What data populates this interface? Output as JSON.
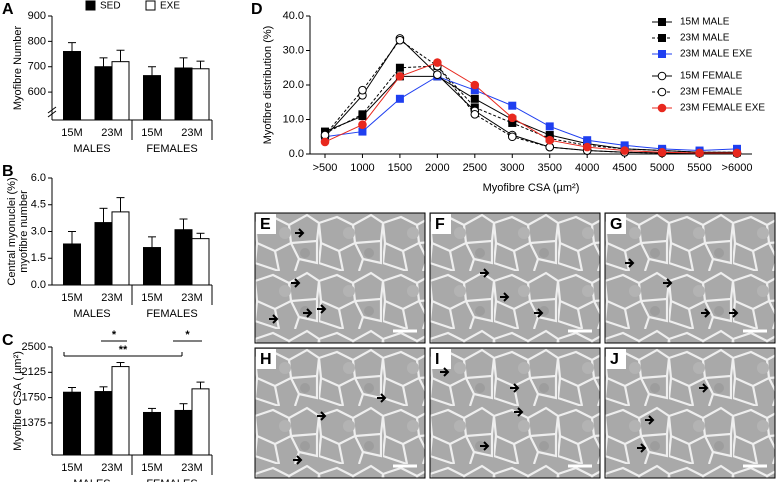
{
  "chart_data": [
    {
      "type": "bar",
      "label": "A",
      "ylabel": [
        "Myofibre Number"
      ],
      "categories": [
        "15M",
        "23M",
        "15M",
        "23M"
      ],
      "groups": [
        "MALES",
        "FEMALES"
      ],
      "series": [
        {
          "name": "SED",
          "color": "#000000",
          "values": [
            760,
            700,
            665,
            695
          ],
          "errors": [
            35,
            35,
            35,
            40
          ]
        },
        {
          "name": "EXE",
          "color": "#ffffff",
          "values": [
            null,
            720,
            null,
            692
          ],
          "errors": [
            null,
            45,
            null,
            30
          ]
        }
      ],
      "ylim": [
        490,
        900
      ],
      "yticks": [
        600,
        700,
        800,
        900
      ],
      "axis_break": true
    },
    {
      "type": "bar",
      "label": "B",
      "ylabel": [
        "Central myonuclei (%)",
        "myofibre number"
      ],
      "categories": [
        "15M",
        "23M",
        "15M",
        "23M"
      ],
      "groups": [
        "MALES",
        "FEMALES"
      ],
      "series": [
        {
          "color": "#000000",
          "values": [
            2.3,
            3.5,
            2.1,
            3.1
          ],
          "errors": [
            0.7,
            0.8,
            0.6,
            0.6
          ]
        },
        {
          "color": "#ffffff",
          "values": [
            null,
            4.1,
            null,
            2.6
          ],
          "errors": [
            null,
            0.8,
            null,
            0.3
          ]
        }
      ],
      "ylim": [
        0,
        6
      ],
      "yticks": [
        {
          "value": 0,
          "label": "0.0"
        },
        1.5,
        {
          "value": 3,
          "label": "3.0"
        },
        4.5,
        {
          "value": 6,
          "label": "6.0"
        }
      ]
    },
    {
      "type": "bar",
      "label": "C",
      "ylabel": [
        "Myofibre CSA ( µm²)"
      ],
      "categories": [
        "15M",
        "23M",
        "15M",
        "23M"
      ],
      "groups": [
        "MALES",
        "FEMALES"
      ],
      "series": [
        {
          "color": "#000000",
          "values": [
            1830,
            1840,
            1530,
            1560
          ],
          "errors": [
            70,
            70,
            60,
            100
          ]
        },
        {
          "color": "#ffffff",
          "values": [
            null,
            2210,
            null,
            1880
          ],
          "errors": [
            null,
            60,
            null,
            100
          ]
        }
      ],
      "ylim": [
        900,
        2500
      ],
      "yticks": [
        1375,
        1750,
        2125,
        2500
      ],
      "annotations": [
        "*",
        "**",
        "*"
      ]
    },
    {
      "type": "line",
      "label": "D",
      "ylabel": [
        "Myofibre distribution (%)"
      ],
      "xlabel": "Myofibre CSA (µm²)",
      "categories": [
        ">500",
        "1000",
        "1500",
        "2000",
        "2500",
        "3000",
        "3500",
        "4000",
        "4500",
        "5000",
        "5500",
        ">6000"
      ],
      "series": [
        {
          "name": "15M MALE",
          "color": "#000000",
          "marker": "square",
          "fill": "filled",
          "dash": "solid",
          "values": [
            6.5,
            11,
            22.5,
            22.5,
            16,
            10,
            5.5,
            3,
            1.5,
            1,
            0.5,
            0.5
          ]
        },
        {
          "name": "23M MALE",
          "color": "#000000",
          "marker": "square",
          "fill": "filled",
          "dash": "dashed",
          "values": [
            6,
            11.5,
            25,
            25.5,
            13.5,
            9,
            4.5,
            2.5,
            1.5,
            1,
            0.5,
            0.5
          ]
        },
        {
          "name": "23M MALE EXE",
          "color": "#1f3ff0",
          "marker": "square",
          "fill": "filled",
          "dash": "solid",
          "values": [
            5,
            6.5,
            16,
            22.5,
            18.5,
            14,
            8,
            4,
            2.5,
            1.5,
            1,
            1.5
          ]
        },
        {
          "name": "15M FEMALE",
          "color": "#000000",
          "marker": "circle",
          "fill": "open",
          "dash": "solid",
          "values": [
            5,
            17,
            33.5,
            23,
            12.5,
            5.5,
            2,
            1,
            0.5,
            0.3,
            0.2,
            0.2
          ]
        },
        {
          "name": "23M FEMALE",
          "color": "#000000",
          "marker": "circle",
          "fill": "open",
          "dash": "dashed",
          "values": [
            5.5,
            18.5,
            33,
            25.5,
            11.5,
            5,
            2,
            1,
            0.5,
            0.3,
            0.2,
            0.2
          ]
        },
        {
          "name": "23M FEMALE EXE",
          "color": "#e8281e",
          "marker": "circle",
          "fill": "filled",
          "dash": "solid",
          "values": [
            3.5,
            8.5,
            22.5,
            26.5,
            20,
            10.5,
            4,
            2,
            1,
            0.5,
            0.3,
            0.3
          ]
        }
      ],
      "ylim": [
        0,
        40
      ],
      "yticks": [
        {
          "value": 0,
          "label": "0.0"
        },
        {
          "value": 10,
          "label": "10.0"
        },
        {
          "value": 20,
          "label": "20.0"
        },
        {
          "value": 30,
          "label": "30.0"
        },
        {
          "value": 40,
          "label": "40.0"
        }
      ]
    }
  ],
  "micrographs": [
    {
      "label": "E"
    },
    {
      "label": "F"
    },
    {
      "label": "G"
    },
    {
      "label": "H"
    },
    {
      "label": "I"
    },
    {
      "label": "J"
    }
  ]
}
